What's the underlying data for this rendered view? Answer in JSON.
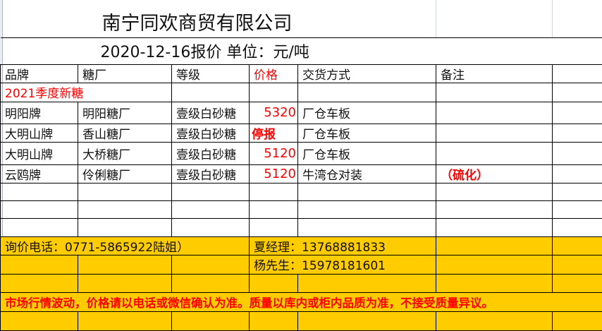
{
  "title": "南宁同欢商贸有限公司",
  "subtitle": "2020-12-16报价   单位：元/吨",
  "headers": [
    "品牌",
    "糖厂",
    "等级",
    "价格",
    "交货方式",
    "备注"
  ],
  "section_label": "2021季度新糖",
  "rows": [
    {
      "brand": "明阳牌",
      "mill": "明阳糖厂",
      "grade": "壹级白砂糖",
      "price": "5320",
      "delivery": "厂仓车板",
      "note": ""
    },
    {
      "brand": "大明山牌",
      "mill": "香山糖厂",
      "grade": "壹级白砂糖",
      "price": "停报",
      "delivery": "厂仓车板",
      "note": ""
    },
    {
      "brand": "大明山牌",
      "mill": "大桥糖厂",
      "grade": "壹级白砂糖",
      "price": "5120",
      "delivery": "厂仓车板",
      "note": ""
    },
    {
      "brand": "云鸥牌",
      "mill": "伶俐糖厂",
      "grade": "壹级白砂糖",
      "price": "5120",
      "delivery": "牛湾仓对装",
      "note": "（硫化）"
    }
  ],
  "contacts": {
    "inquiry": "询价电话：0771-5865922陆姐）",
    "manager_xia": "夏经理：13768881833",
    "mr_yang": "杨先生：15978181601"
  },
  "notice": "市场行情波动，价格请以电话或微信确认为准。质量以库内或柜内品质为准，不接受质量异议。",
  "colors": {
    "highlight": "#FFCC00",
    "accent_red": "#FF0000"
  }
}
